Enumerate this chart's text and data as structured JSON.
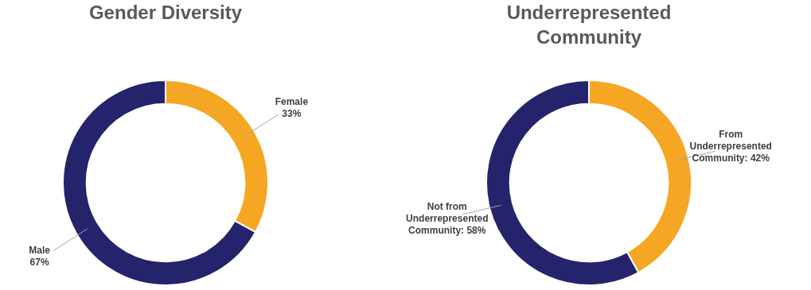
{
  "chart_data": [
    {
      "type": "donut",
      "title": "Gender Diversity",
      "categories": [
        "Female",
        "Male"
      ],
      "values": [
        33,
        67
      ],
      "colors": [
        "#f5a623",
        "#25236b"
      ],
      "value_labels": [
        "33%",
        "67%"
      ],
      "legend": false
    },
    {
      "type": "donut",
      "title": "Underrepresented Community",
      "categories": [
        "From Underrepresented Community",
        "Not from Underrepresented Community"
      ],
      "values": [
        42,
        58
      ],
      "colors": [
        "#f5a623",
        "#25236b"
      ],
      "value_labels": [
        ": 42%",
        ": 58%"
      ],
      "legend": false
    }
  ]
}
